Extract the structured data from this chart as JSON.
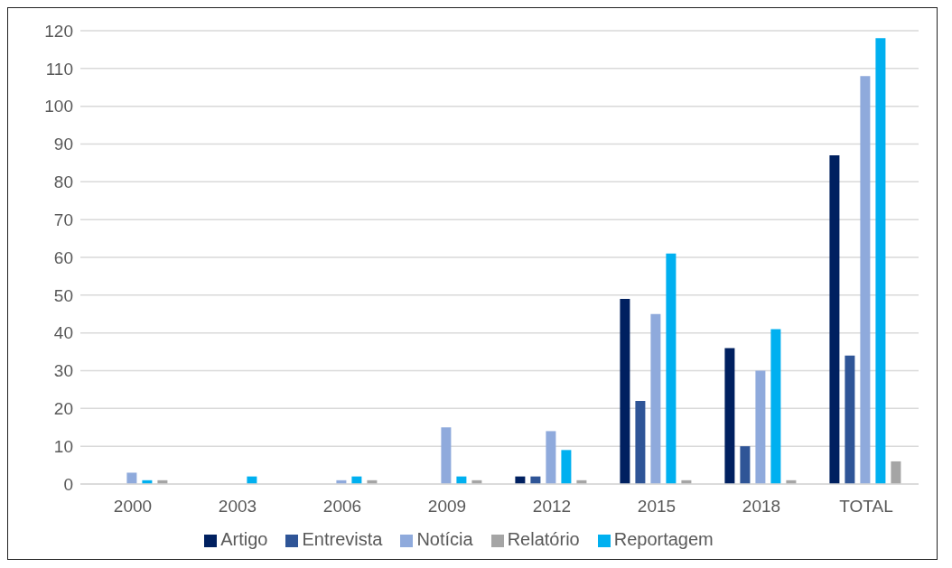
{
  "chart_data": {
    "type": "bar",
    "categories": [
      "2000",
      "2003",
      "2006",
      "2009",
      "2012",
      "2015",
      "2018",
      "TOTAL"
    ],
    "series": [
      {
        "name": "Artigo",
        "color": "#002060",
        "values": [
          0,
          0,
          0,
          0,
          2,
          49,
          36,
          87
        ]
      },
      {
        "name": "Entrevista",
        "color": "#2f5597",
        "values": [
          0,
          0,
          0,
          0,
          2,
          22,
          10,
          34
        ]
      },
      {
        "name": "Notícia",
        "color": "#8faadc",
        "values": [
          3,
          0,
          1,
          15,
          14,
          45,
          30,
          108
        ]
      },
      {
        "name": "Reportagem",
        "color": "#00b0f0",
        "values": [
          1,
          2,
          2,
          2,
          9,
          61,
          41,
          118
        ]
      },
      {
        "name": "Relatório",
        "color": "#a5a5a5",
        "values": [
          1,
          0,
          1,
          1,
          1,
          1,
          1,
          6
        ]
      }
    ],
    "ylim": [
      0,
      120
    ],
    "yticks": [
      0,
      10,
      20,
      30,
      40,
      50,
      60,
      70,
      80,
      90,
      100,
      110,
      120
    ],
    "grid": "y",
    "legend": "bottom"
  }
}
